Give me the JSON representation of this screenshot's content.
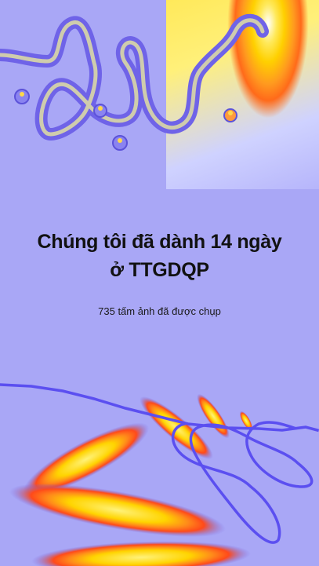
{
  "story": {
    "headline_line1": "Chúng tôi đã dành 14 ngày",
    "headline_line2": "ở TTGDQP",
    "subtitle": "735 tấm ảnh đã được chụp"
  },
  "theme": {
    "background": "#a9a7f6",
    "accent_purple": "#6f63e8",
    "accent_yellow": "#ffe95a",
    "accent_orange": "#ff6a1a"
  },
  "decorations": {
    "top": [
      "wavy-tube-line",
      "gradient-heat-panel",
      "bubble-icons"
    ],
    "bottom": [
      "pixel-scribble-line",
      "heat-blob-streaks"
    ]
  }
}
